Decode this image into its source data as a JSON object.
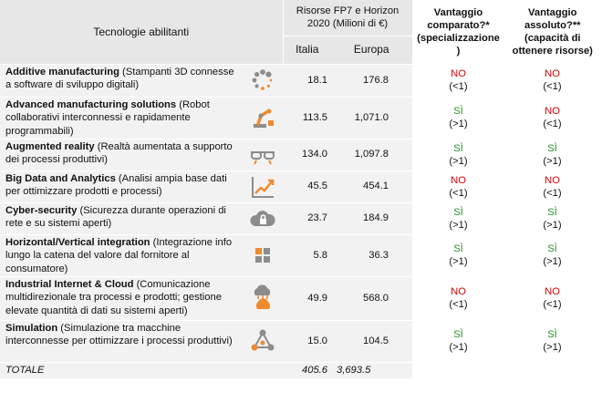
{
  "header": {
    "tech_label": "Tecnologie abilitanti",
    "resources_label": "Risorse FP7 e Horizon 2020  (Milioni di €)",
    "italia_label": "Italia",
    "europa_label": "Europa",
    "comparative_label": "Vantaggio comparato?* (specializzazione )",
    "absolute_label": "Vantaggio assoluto?** (capacità di ottenere risorse)"
  },
  "rows": [
    {
      "name": "Additive manufacturing",
      "desc": " (Stampanti 3D connesse a software di sviluppo digitali)",
      "icon": "dots-circle-icon",
      "italia": "18.1",
      "europa": "176.8",
      "comp": "NO",
      "comp_ratio": "(<1)",
      "abs": "NO",
      "abs_ratio": "(<1)"
    },
    {
      "name": "Advanced manufacturing solutions",
      "desc": " (Robot collaborativi interconnessi e rapidamente programmabili)",
      "icon": "robot-arm-icon",
      "italia": "113.5",
      "europa": "1,071.0",
      "comp": "SÌ",
      "comp_ratio": "(>1)",
      "abs": "NO",
      "abs_ratio": "(<1)"
    },
    {
      "name": "Augmented reality",
      "desc": " (Realtà aumentata a supporto dei processi produttivi)",
      "icon": "glasses-icon",
      "italia": "134.0",
      "europa": "1,097.8",
      "comp": "SÌ",
      "comp_ratio": "(>1)",
      "abs": "SÌ",
      "abs_ratio": "(>1)"
    },
    {
      "name": "Big Data and Analytics",
      "desc": " (Analisi ampia base dati per ottimizzare prodotti e processi)",
      "icon": "chart-growth-icon",
      "italia": "45.5",
      "europa": "454.1",
      "comp": "NO",
      "comp_ratio": "(<1)",
      "abs": "NO",
      "abs_ratio": "(<1)"
    },
    {
      "name": "Cyber-security",
      "desc": " (Sicurezza durante operazioni di rete e su sistemi aperti)",
      "icon": "cloud-lock-icon",
      "italia": "23.7",
      "europa": "184.9",
      "comp": "SÌ",
      "comp_ratio": "(>1)",
      "abs": "SÌ",
      "abs_ratio": "(>1)"
    },
    {
      "name": "Horizontal/Vertical integration",
      "desc": " (Integrazione info lungo la catena del valore dal fornitore al consumatore)",
      "icon": "grid-squares-icon",
      "italia": "5.8",
      "europa": "36.3",
      "comp": "SÌ",
      "comp_ratio": "(>1)",
      "abs": "SÌ",
      "abs_ratio": "(>1)"
    },
    {
      "name": "Industrial Internet & Cloud",
      "desc": " (Comunicazione multidirezionale tra processi e prodotti; gestione elevate quantità di dati su sistemi aperti)",
      "icon": "cloud-network-icon",
      "italia": "49.9",
      "europa": "568.0",
      "comp": "NO",
      "comp_ratio": "(<1)",
      "abs": "NO",
      "abs_ratio": "(<1)"
    },
    {
      "name": "Simulation",
      "desc": " (Simulazione tra macchine interconnesse per ottimizzare i processi produttivi)",
      "icon": "network-nodes-icon",
      "italia": "15.0",
      "europa": "104.5",
      "comp": "SÌ",
      "comp_ratio": "(>1)",
      "abs": "SÌ",
      "abs_ratio": "(>1)"
    }
  ],
  "total": {
    "label": "TOTALE",
    "italia": "405.6",
    "europa": "3,693.5"
  },
  "colors": {
    "no": "#e00000",
    "si": "#2e8b2e",
    "orange": "#ef8a2f",
    "grey_icon": "#8c8c8c",
    "header_bg": "#e7e7e7",
    "cell_bg": "#f2f2f2"
  }
}
